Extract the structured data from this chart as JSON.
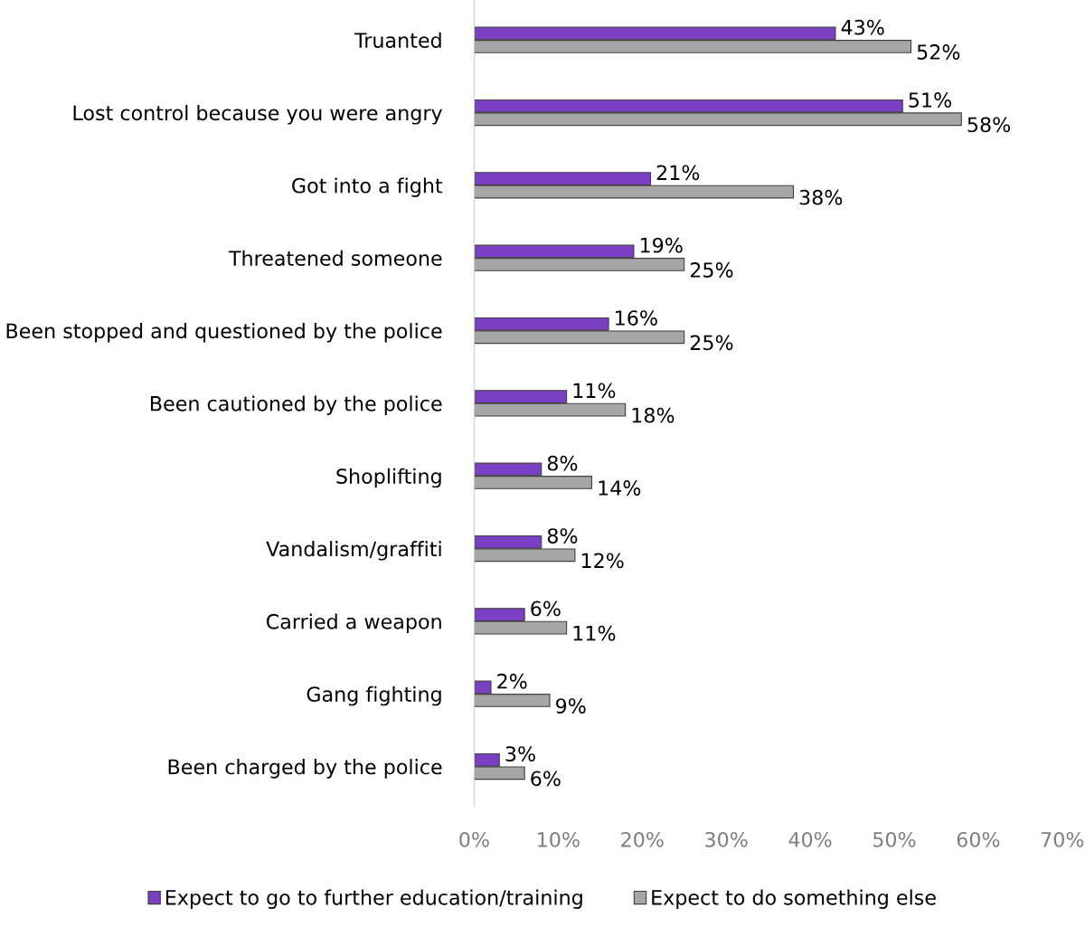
{
  "chart_data": {
    "type": "bar",
    "orientation": "horizontal",
    "categories": [
      "Truanted",
      "Lost control because you were angry",
      "Got into a fight",
      "Threatened someone",
      "Been stopped and questioned by the police",
      "Been cautioned by the police",
      "Shoplifting",
      "Vandalism/graffiti",
      "Carried a weapon",
      "Gang fighting",
      "Been charged by the police"
    ],
    "series": [
      {
        "name": "Expect to go to further education/training",
        "color": "#7b3fc4",
        "values": [
          43,
          51,
          21,
          19,
          16,
          11,
          8,
          8,
          6,
          2,
          3
        ],
        "value_labels": [
          "43%",
          "51%",
          "21%",
          "19%",
          "16%",
          "11%",
          "8%",
          "8%",
          "6%",
          "2%",
          "3%"
        ]
      },
      {
        "name": "Expect to do something else",
        "color": "#a6a6a6",
        "values": [
          52,
          58,
          38,
          25,
          25,
          18,
          14,
          12,
          11,
          9,
          6
        ],
        "value_labels": [
          "52%",
          "58%",
          "38%",
          "25%",
          "25%",
          "18%",
          "14%",
          "12%",
          "11%",
          "9%",
          "6%"
        ]
      }
    ],
    "xlim": [
      0,
      70
    ],
    "xticks": [
      {
        "value": 0,
        "label": "0%"
      },
      {
        "value": 10,
        "label": "10%"
      },
      {
        "value": 20,
        "label": "20%"
      },
      {
        "value": 30,
        "label": "30%"
      },
      {
        "value": 40,
        "label": "40%"
      },
      {
        "value": 50,
        "label": "50%"
      },
      {
        "value": 60,
        "label": "60%"
      },
      {
        "value": 70,
        "label": "70%"
      }
    ],
    "grid": false,
    "legend": "bottom"
  }
}
